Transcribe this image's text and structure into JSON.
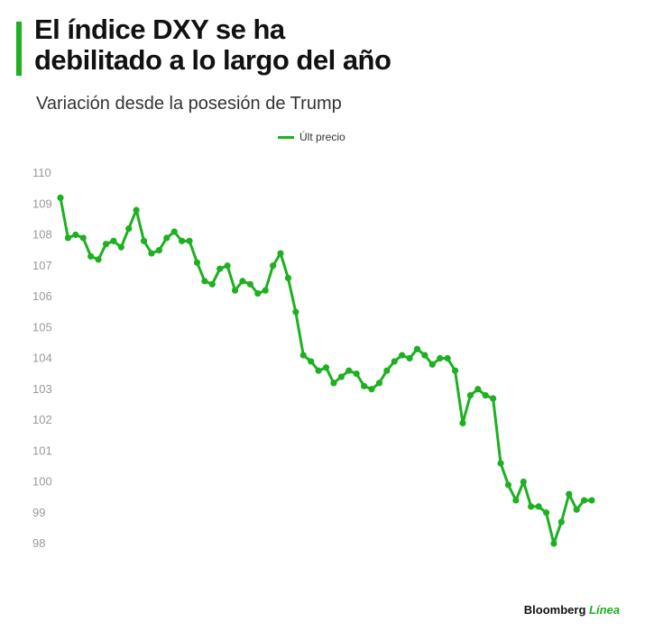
{
  "header": {
    "title_line1": "El índice DXY se ha",
    "title_line2": "debilitado a lo largo del año",
    "subtitle": "Variación desde la posesión de Trump"
  },
  "brand": {
    "name": "Bloomberg",
    "accent": "Línea"
  },
  "colors": {
    "series": "#1db020",
    "ticks": "#999999"
  },
  "chart_data": {
    "type": "line",
    "title": "El índice DXY se ha debilitado a lo largo del año",
    "subtitle": "Variación desde la posesión de Trump",
    "xlabel": "",
    "ylabel": "",
    "ylim": [
      98,
      110
    ],
    "yticks": [
      "110",
      "109",
      "108",
      "107",
      "106",
      "105",
      "104",
      "103",
      "102",
      "101",
      "100",
      "99",
      "98"
    ],
    "grid": false,
    "legend": "top-center",
    "markers": true,
    "series": [
      {
        "name": "Últ precio",
        "values": [
          109.2,
          107.9,
          108.0,
          107.9,
          107.3,
          107.2,
          107.7,
          107.8,
          107.6,
          108.2,
          108.8,
          107.8,
          107.4,
          107.5,
          107.9,
          108.1,
          107.8,
          107.8,
          107.1,
          106.5,
          106.4,
          106.9,
          107.0,
          106.2,
          106.5,
          106.4,
          106.1,
          106.2,
          107.0,
          107.4,
          106.6,
          105.5,
          104.1,
          103.9,
          103.6,
          103.7,
          103.2,
          103.4,
          103.6,
          103.5,
          103.1,
          103.0,
          103.2,
          103.6,
          103.9,
          104.1,
          104.0,
          104.3,
          104.1,
          103.8,
          104.0,
          104.0,
          103.6,
          101.9,
          102.8,
          103.0,
          102.8,
          102.7,
          100.6,
          99.9,
          99.4,
          100.0,
          99.2,
          99.2,
          99.0,
          98.0,
          98.7,
          99.6,
          99.1,
          99.4,
          99.4
        ]
      }
    ]
  }
}
